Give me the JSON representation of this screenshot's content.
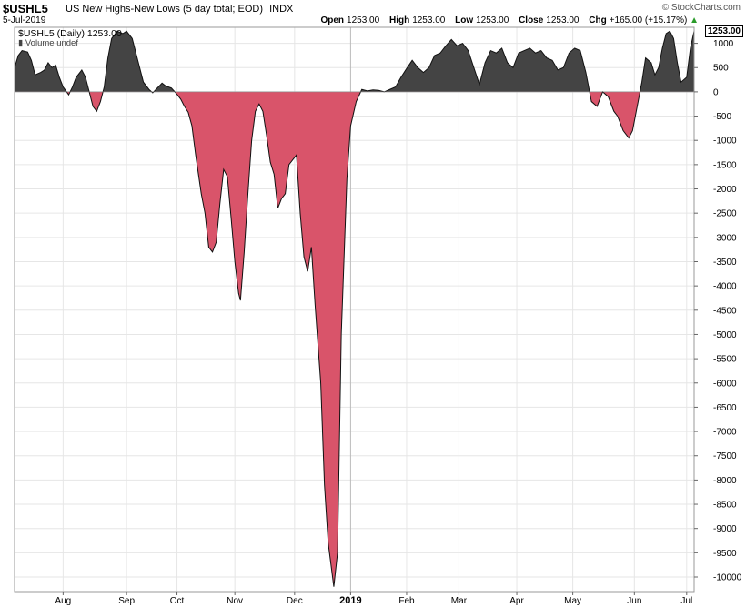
{
  "header": {
    "symbol": "$USHL5",
    "description": "US New Highs-New Lows (5 day total; EOD)",
    "exchange": "INDX",
    "date": "5-Jul-2019",
    "brand": "© StockCharts.com",
    "open_label": "Open",
    "open": "1253.00",
    "high_label": "High",
    "high": "1253.00",
    "low_label": "Low",
    "low": "1253.00",
    "close_label": "Close",
    "close": "1253.00",
    "chg_label": "Chg",
    "chg": "+165.00 (+15.17%)",
    "up_icon": "triangle-up-icon",
    "up_color": "#2a9b2a"
  },
  "legend": {
    "series_label": "$USHL5 (Daily) 1253.00",
    "volume_label": "Volume undef",
    "last_value": "1253.00"
  },
  "colors": {
    "positive_fill": "#444444",
    "negative_fill": "#d9546a",
    "grid": "#e6e6e6",
    "year_line": "#bbbbbb"
  },
  "chart_data": {
    "type": "area",
    "title": "$USHL5 (Daily) 1253.00",
    "ylim": [
      -10300,
      1330
    ],
    "yticks": [
      1000,
      500,
      0,
      -500,
      -1000,
      -1500,
      -2000,
      -2500,
      -3000,
      -3500,
      -4000,
      -4500,
      -5000,
      -5500,
      -6000,
      -6500,
      -7000,
      -7500,
      -8000,
      -8500,
      -9000,
      -9500,
      -10000
    ],
    "yticklabels": [
      "1000",
      "500",
      "0",
      "-500",
      "-1000",
      "-1500",
      "-2000",
      "-2500",
      "-3000",
      "-3500",
      "-4000",
      "-4500",
      "-5000",
      "-5500",
      "-6000",
      "-6500",
      "-7000",
      "-7500",
      "-8000",
      "-8500",
      "-9000",
      "-9500",
      "-10000"
    ],
    "xlim": [
      "2018-07-06",
      "2019-07-05"
    ],
    "xticks": [
      {
        "label": "Aug",
        "date": "2018-08-01"
      },
      {
        "label": "Sep",
        "date": "2018-09-04"
      },
      {
        "label": "Oct",
        "date": "2018-10-01"
      },
      {
        "label": "Nov",
        "date": "2018-11-01"
      },
      {
        "label": "Dec",
        "date": "2018-12-03"
      },
      {
        "label": "2019",
        "date": "2019-01-02",
        "bold": true
      },
      {
        "label": "Feb",
        "date": "2019-02-01"
      },
      {
        "label": "Mar",
        "date": "2019-03-01"
      },
      {
        "label": "Apr",
        "date": "2019-04-01"
      },
      {
        "label": "May",
        "date": "2019-05-01"
      },
      {
        "label": "Jun",
        "date": "2019-06-03"
      },
      {
        "label": "Jul",
        "date": "2019-07-01"
      }
    ],
    "grid": true,
    "legend_position": "top-left",
    "series": [
      {
        "points": [
          [
            "2018-07-06",
            500
          ],
          [
            "2018-07-08",
            750
          ],
          [
            "2018-07-10",
            850
          ],
          [
            "2018-07-13",
            820
          ],
          [
            "2018-07-15",
            650
          ],
          [
            "2018-07-17",
            350
          ],
          [
            "2018-07-20",
            400
          ],
          [
            "2018-07-22",
            450
          ],
          [
            "2018-07-24",
            600
          ],
          [
            "2018-07-26",
            500
          ],
          [
            "2018-07-28",
            550
          ],
          [
            "2018-07-30",
            300
          ],
          [
            "2018-08-01",
            100
          ],
          [
            "2018-08-04",
            -60
          ],
          [
            "2018-08-06",
            100
          ],
          [
            "2018-08-08",
            300
          ],
          [
            "2018-08-11",
            450
          ],
          [
            "2018-08-13",
            300
          ],
          [
            "2018-08-15",
            0
          ],
          [
            "2018-08-17",
            -300
          ],
          [
            "2018-08-19",
            -400
          ],
          [
            "2018-08-21",
            -200
          ],
          [
            "2018-08-23",
            100
          ],
          [
            "2018-08-25",
            700
          ],
          [
            "2018-08-27",
            1100
          ],
          [
            "2018-08-30",
            1250
          ],
          [
            "2018-09-02",
            1200
          ],
          [
            "2018-09-04",
            1250
          ],
          [
            "2018-09-07",
            1100
          ],
          [
            "2018-09-09",
            800
          ],
          [
            "2018-09-11",
            500
          ],
          [
            "2018-09-13",
            200
          ],
          [
            "2018-09-16",
            50
          ],
          [
            "2018-09-18",
            -20
          ],
          [
            "2018-09-20",
            60
          ],
          [
            "2018-09-23",
            180
          ],
          [
            "2018-09-25",
            120
          ],
          [
            "2018-09-28",
            80
          ],
          [
            "2018-10-01",
            -50
          ],
          [
            "2018-10-03",
            -150
          ],
          [
            "2018-10-05",
            -300
          ],
          [
            "2018-10-07",
            -420
          ],
          [
            "2018-10-09",
            -700
          ],
          [
            "2018-10-11",
            -1300
          ],
          [
            "2018-10-14",
            -2100
          ],
          [
            "2018-10-16",
            -2500
          ],
          [
            "2018-10-18",
            -3200
          ],
          [
            "2018-10-20",
            -3300
          ],
          [
            "2018-10-22",
            -3100
          ],
          [
            "2018-10-24",
            -2300
          ],
          [
            "2018-10-26",
            -1600
          ],
          [
            "2018-10-28",
            -1750
          ],
          [
            "2018-10-30",
            -2600
          ],
          [
            "2018-11-01",
            -3500
          ],
          [
            "2018-11-03",
            -4150
          ],
          [
            "2018-11-04",
            -4300
          ],
          [
            "2018-11-06",
            -3300
          ],
          [
            "2018-11-08",
            -2100
          ],
          [
            "2018-11-10",
            -1000
          ],
          [
            "2018-11-12",
            -400
          ],
          [
            "2018-11-14",
            -250
          ],
          [
            "2018-11-16",
            -400
          ],
          [
            "2018-11-18",
            -900
          ],
          [
            "2018-11-20",
            -1450
          ],
          [
            "2018-11-22",
            -1700
          ],
          [
            "2018-11-24",
            -2400
          ],
          [
            "2018-11-26",
            -2200
          ],
          [
            "2018-11-28",
            -2100
          ],
          [
            "2018-11-30",
            -1500
          ],
          [
            "2018-12-02",
            -1400
          ],
          [
            "2018-12-04",
            -1300
          ],
          [
            "2018-12-06",
            -2500
          ],
          [
            "2018-12-08",
            -3400
          ],
          [
            "2018-12-10",
            -3700
          ],
          [
            "2018-12-12",
            -3200
          ],
          [
            "2018-12-14",
            -4400
          ],
          [
            "2018-12-17",
            -6000
          ],
          [
            "2018-12-19",
            -8100
          ],
          [
            "2018-12-21",
            -9300
          ],
          [
            "2018-12-24",
            -10200
          ],
          [
            "2018-12-26",
            -9500
          ],
          [
            "2018-12-28",
            -5000
          ],
          [
            "2018-12-31",
            -1800
          ],
          [
            "2019-01-02",
            -700
          ],
          [
            "2019-01-05",
            -200
          ],
          [
            "2019-01-08",
            50
          ],
          [
            "2019-01-11",
            20
          ],
          [
            "2019-01-14",
            40
          ],
          [
            "2019-01-17",
            30
          ],
          [
            "2019-01-20",
            0
          ],
          [
            "2019-01-23",
            50
          ],
          [
            "2019-01-26",
            100
          ],
          [
            "2019-01-29",
            300
          ],
          [
            "2019-02-01",
            480
          ],
          [
            "2019-02-04",
            650
          ],
          [
            "2019-02-07",
            500
          ],
          [
            "2019-02-10",
            400
          ],
          [
            "2019-02-13",
            500
          ],
          [
            "2019-02-16",
            750
          ],
          [
            "2019-02-19",
            800
          ],
          [
            "2019-02-22",
            950
          ],
          [
            "2019-02-25",
            1080
          ],
          [
            "2019-02-28",
            950
          ],
          [
            "2019-03-03",
            1000
          ],
          [
            "2019-03-06",
            850
          ],
          [
            "2019-03-09",
            500
          ],
          [
            "2019-03-12",
            150
          ],
          [
            "2019-03-15",
            600
          ],
          [
            "2019-03-18",
            850
          ],
          [
            "2019-03-21",
            800
          ],
          [
            "2019-03-24",
            900
          ],
          [
            "2019-03-27",
            600
          ],
          [
            "2019-03-30",
            500
          ],
          [
            "2019-04-02",
            800
          ],
          [
            "2019-04-05",
            850
          ],
          [
            "2019-04-08",
            900
          ],
          [
            "2019-04-11",
            800
          ],
          [
            "2019-04-14",
            850
          ],
          [
            "2019-04-17",
            700
          ],
          [
            "2019-04-20",
            650
          ],
          [
            "2019-04-23",
            450
          ],
          [
            "2019-04-26",
            500
          ],
          [
            "2019-04-29",
            800
          ],
          [
            "2019-05-02",
            900
          ],
          [
            "2019-05-05",
            850
          ],
          [
            "2019-05-08",
            400
          ],
          [
            "2019-05-11",
            -200
          ],
          [
            "2019-05-14",
            -300
          ],
          [
            "2019-05-17",
            0
          ],
          [
            "2019-05-20",
            -100
          ],
          [
            "2019-05-23",
            -400
          ],
          [
            "2019-05-25",
            -500
          ],
          [
            "2019-05-28",
            -800
          ],
          [
            "2019-05-31",
            -950
          ],
          [
            "2019-06-02",
            -800
          ],
          [
            "2019-06-05",
            -200
          ],
          [
            "2019-06-07",
            200
          ],
          [
            "2019-06-09",
            700
          ],
          [
            "2019-06-12",
            600
          ],
          [
            "2019-06-14",
            350
          ],
          [
            "2019-06-16",
            500
          ],
          [
            "2019-06-18",
            900
          ],
          [
            "2019-06-20",
            1200
          ],
          [
            "2019-06-22",
            1250
          ],
          [
            "2019-06-24",
            1100
          ],
          [
            "2019-06-26",
            600
          ],
          [
            "2019-06-28",
            200
          ],
          [
            "2019-07-01",
            300
          ],
          [
            "2019-07-03",
            900
          ],
          [
            "2019-07-05",
            1253
          ]
        ]
      }
    ]
  }
}
